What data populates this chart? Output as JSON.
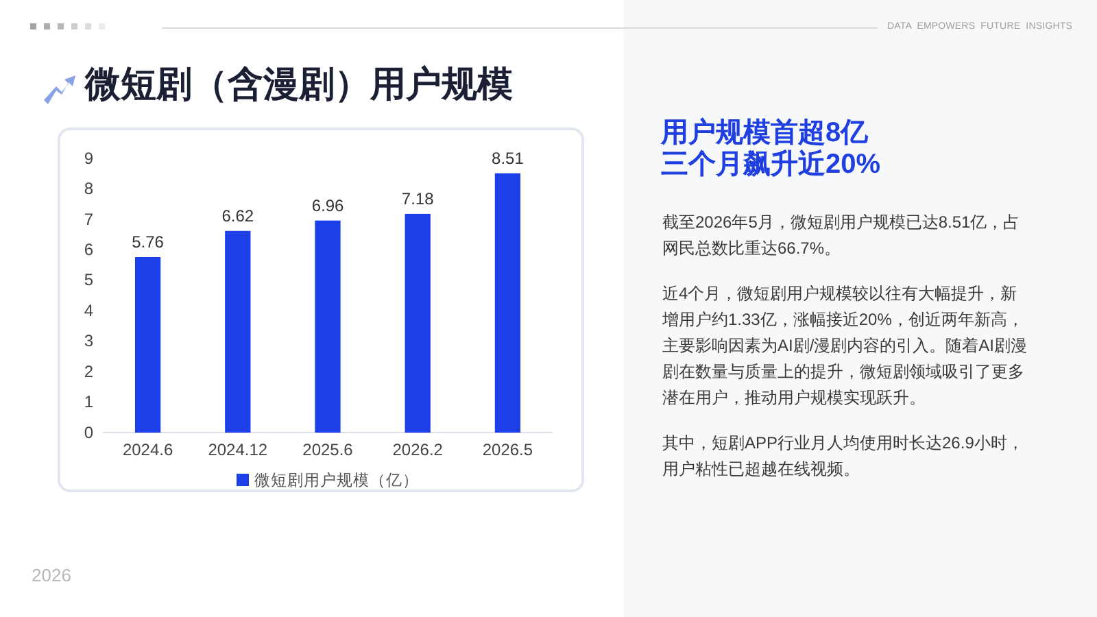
{
  "chart_data": {
    "type": "bar",
    "title": "微短剧（含漫剧）用户规模",
    "subtitle": "用户规模首超8亿三个月飙升近20%",
    "categories": [
      "2024.6",
      "2024.12",
      "2025.6",
      "2026.2",
      "2026.5"
    ],
    "series": [
      {
        "name": "微短剧用户规模（亿）",
        "color": "#1c3fe8",
        "values": [
          5.76,
          6.62,
          6.96,
          7.18,
          8.51
        ]
      }
    ],
    "ylim": [
      0,
      9
    ],
    "yticks": [
      0,
      1,
      2,
      3,
      4,
      5,
      6,
      7,
      8,
      9
    ],
    "data_labels": true,
    "legend": "bottom",
    "annotations": [
      "DATA EMPOWERS FUTURE INSIGHTS",
      "截至2026年5月，微短剧用户规模已达8.51亿，占网民总数比重达66.7%。",
      "近4个月，微短剧用户规模较以往有大幅提升，新增用户约1.33亿，涨幅接近20%，创近两年新高，主要影响因素为AI剧/漫剧内容的引入。随着AI剧漫剧在数量与质量上的提升，微短剧领域吸引了更多潜在用户，推动用户规模实现跃升。",
      "其中，短剧APP行业月人均使用时长达26.9小时，用户粘性已超越在线视频。",
      "2026"
    ]
  }
}
